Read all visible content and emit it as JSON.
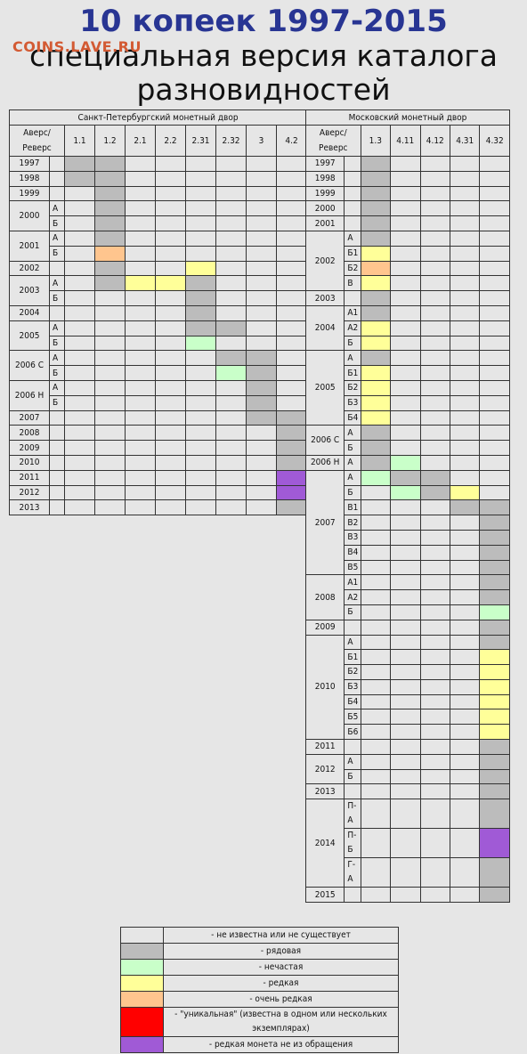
{
  "title": "10 копеек 1997-2015",
  "subtitle": "специальная версия каталога разновидностей",
  "watermark": "COINS.LAVE.RU",
  "colors": {
    "0": "#e6e6e6",
    "1": "#bcbcbc",
    "2": "#c9ffc9",
    "3": "#ffff99",
    "4": "#ffc58e",
    "5": "#ff0000",
    "6": "#a05ad6"
  },
  "spb": {
    "mint": "Санкт-Петербургский монетный двор",
    "obverse_reverse": "Аверс/ Реверс",
    "columns": [
      "1.1",
      "1.2",
      "2.1",
      "2.2",
      "2.31",
      "2.32",
      "3",
      "4.2"
    ],
    "rows": [
      {
        "year": "1997",
        "sub": "",
        "cells": [
          1,
          1,
          0,
          0,
          0,
          0,
          0,
          0
        ]
      },
      {
        "year": "1998",
        "sub": "",
        "cells": [
          1,
          1,
          0,
          0,
          0,
          0,
          0,
          0
        ]
      },
      {
        "year": "1999",
        "sub": "",
        "cells": [
          0,
          1,
          0,
          0,
          0,
          0,
          0,
          0
        ]
      },
      {
        "year": "2000",
        "sub": "А",
        "cells": [
          0,
          1,
          0,
          0,
          0,
          0,
          0,
          0
        ]
      },
      {
        "year": "",
        "sub": "Б",
        "cells": [
          0,
          1,
          0,
          0,
          0,
          0,
          0,
          0
        ]
      },
      {
        "year": "2001",
        "sub": "А",
        "cells": [
          0,
          1,
          0,
          0,
          0,
          0,
          0,
          0
        ]
      },
      {
        "year": "",
        "sub": "Б",
        "cells": [
          0,
          4,
          0,
          0,
          0,
          0,
          0,
          0
        ]
      },
      {
        "year": "2002",
        "sub": "",
        "cells": [
          0,
          1,
          0,
          0,
          3,
          0,
          0,
          0
        ]
      },
      {
        "year": "2003",
        "sub": "А",
        "cells": [
          0,
          1,
          3,
          3,
          1,
          0,
          0,
          0
        ]
      },
      {
        "year": "",
        "sub": "Б",
        "cells": [
          0,
          0,
          0,
          0,
          1,
          0,
          0,
          0
        ]
      },
      {
        "year": "2004",
        "sub": "",
        "cells": [
          0,
          0,
          0,
          0,
          1,
          0,
          0,
          0
        ]
      },
      {
        "year": "2005",
        "sub": "А",
        "cells": [
          0,
          0,
          0,
          0,
          1,
          1,
          0,
          0
        ]
      },
      {
        "year": "",
        "sub": "Б",
        "cells": [
          0,
          0,
          0,
          0,
          2,
          0,
          0,
          0
        ]
      },
      {
        "year": "2006 С",
        "sub": "А",
        "cells": [
          0,
          0,
          0,
          0,
          0,
          1,
          1,
          0
        ]
      },
      {
        "year": "",
        "sub": "Б",
        "cells": [
          0,
          0,
          0,
          0,
          0,
          2,
          1,
          0
        ]
      },
      {
        "year": "2006 Н",
        "sub": "А",
        "cells": [
          0,
          0,
          0,
          0,
          0,
          0,
          1,
          0
        ]
      },
      {
        "year": "",
        "sub": "Б",
        "cells": [
          0,
          0,
          0,
          0,
          0,
          0,
          1,
          0
        ]
      },
      {
        "year": "2007",
        "sub": "",
        "cells": [
          0,
          0,
          0,
          0,
          0,
          0,
          1,
          1
        ]
      },
      {
        "year": "2008",
        "sub": "",
        "cells": [
          0,
          0,
          0,
          0,
          0,
          0,
          0,
          1
        ]
      },
      {
        "year": "2009",
        "sub": "",
        "cells": [
          0,
          0,
          0,
          0,
          0,
          0,
          0,
          1
        ]
      },
      {
        "year": "2010",
        "sub": "",
        "cells": [
          0,
          0,
          0,
          0,
          0,
          0,
          0,
          1
        ]
      },
      {
        "year": "2011",
        "sub": "",
        "cells": [
          0,
          0,
          0,
          0,
          0,
          0,
          0,
          6
        ]
      },
      {
        "year": "2012",
        "sub": "",
        "cells": [
          0,
          0,
          0,
          0,
          0,
          0,
          0,
          6
        ]
      },
      {
        "year": "2013",
        "sub": "",
        "cells": [
          0,
          0,
          0,
          0,
          0,
          0,
          0,
          1
        ]
      }
    ]
  },
  "msk": {
    "mint": "Московский монетный двор",
    "obverse_reverse": "Аверс/ Реверс",
    "columns": [
      "1.3",
      "4.11",
      "4.12",
      "4.31",
      "4.32"
    ],
    "rows": [
      {
        "year": "1997",
        "sub": "",
        "cells": [
          1,
          0,
          0,
          0,
          0
        ]
      },
      {
        "year": "1998",
        "sub": "",
        "cells": [
          1,
          0,
          0,
          0,
          0
        ]
      },
      {
        "year": "1999",
        "sub": "",
        "cells": [
          1,
          0,
          0,
          0,
          0
        ]
      },
      {
        "year": "2000",
        "sub": "",
        "cells": [
          1,
          0,
          0,
          0,
          0
        ]
      },
      {
        "year": "2001",
        "sub": "",
        "cells": [
          1,
          0,
          0,
          0,
          0
        ]
      },
      {
        "year": "2002",
        "sub": "А",
        "cells": [
          1,
          0,
          0,
          0,
          0
        ]
      },
      {
        "year": "",
        "sub": "Б1",
        "cells": [
          3,
          0,
          0,
          0,
          0
        ]
      },
      {
        "year": "",
        "sub": "Б2",
        "cells": [
          4,
          0,
          0,
          0,
          0
        ]
      },
      {
        "year": "",
        "sub": "В",
        "cells": [
          3,
          0,
          0,
          0,
          0
        ]
      },
      {
        "year": "2003",
        "sub": "",
        "cells": [
          1,
          0,
          0,
          0,
          0
        ]
      },
      {
        "year": "2004",
        "sub": "А1",
        "cells": [
          1,
          0,
          0,
          0,
          0
        ]
      },
      {
        "year": "",
        "sub": "А2",
        "cells": [
          3,
          0,
          0,
          0,
          0
        ]
      },
      {
        "year": "",
        "sub": "Б",
        "cells": [
          3,
          0,
          0,
          0,
          0
        ]
      },
      {
        "year": "2005",
        "sub": "А",
        "cells": [
          1,
          0,
          0,
          0,
          0
        ]
      },
      {
        "year": "",
        "sub": "Б1",
        "cells": [
          3,
          0,
          0,
          0,
          0
        ]
      },
      {
        "year": "",
        "sub": "Б2",
        "cells": [
          3,
          0,
          0,
          0,
          0
        ]
      },
      {
        "year": "",
        "sub": "Б3",
        "cells": [
          3,
          0,
          0,
          0,
          0
        ]
      },
      {
        "year": "",
        "sub": "Б4",
        "cells": [
          3,
          0,
          0,
          0,
          0
        ]
      },
      {
        "year": "2006 С",
        "sub": "А",
        "cells": [
          1,
          0,
          0,
          0,
          0
        ]
      },
      {
        "year": "",
        "sub": "Б",
        "cells": [
          1,
          0,
          0,
          0,
          0
        ]
      },
      {
        "year": "2006 Н",
        "sub": "А",
        "cells": [
          1,
          2,
          0,
          0,
          0
        ]
      },
      {
        "year": "2007",
        "sub": "А",
        "cells": [
          2,
          1,
          1,
          0,
          0
        ]
      },
      {
        "year": "",
        "sub": "Б",
        "cells": [
          0,
          2,
          1,
          3,
          0
        ]
      },
      {
        "year": "",
        "sub": "В1",
        "cells": [
          0,
          0,
          0,
          1,
          1
        ]
      },
      {
        "year": "",
        "sub": "В2",
        "cells": [
          0,
          0,
          0,
          0,
          1
        ]
      },
      {
        "year": "",
        "sub": "В3",
        "cells": [
          0,
          0,
          0,
          0,
          1
        ]
      },
      {
        "year": "",
        "sub": "В4",
        "cells": [
          0,
          0,
          0,
          0,
          1
        ]
      },
      {
        "year": "",
        "sub": "В5",
        "cells": [
          0,
          0,
          0,
          0,
          1
        ]
      },
      {
        "year": "2008",
        "sub": "А1",
        "cells": [
          0,
          0,
          0,
          0,
          1
        ]
      },
      {
        "year": "",
        "sub": "А2",
        "cells": [
          0,
          0,
          0,
          0,
          1
        ]
      },
      {
        "year": "",
        "sub": "Б",
        "cells": [
          0,
          0,
          0,
          0,
          2
        ]
      },
      {
        "year": "2009",
        "sub": "",
        "cells": [
          0,
          0,
          0,
          0,
          1
        ]
      },
      {
        "year": "2010",
        "sub": "А",
        "cells": [
          0,
          0,
          0,
          0,
          1
        ]
      },
      {
        "year": "",
        "sub": "Б1",
        "cells": [
          0,
          0,
          0,
          0,
          3
        ]
      },
      {
        "year": "",
        "sub": "Б2",
        "cells": [
          0,
          0,
          0,
          0,
          3
        ]
      },
      {
        "year": "",
        "sub": "Б3",
        "cells": [
          0,
          0,
          0,
          0,
          3
        ]
      },
      {
        "year": "",
        "sub": "Б4",
        "cells": [
          0,
          0,
          0,
          0,
          3
        ]
      },
      {
        "year": "",
        "sub": "Б5",
        "cells": [
          0,
          0,
          0,
          0,
          3
        ]
      },
      {
        "year": "",
        "sub": "Б6",
        "cells": [
          0,
          0,
          0,
          0,
          3
        ]
      },
      {
        "year": "2011",
        "sub": "",
        "cells": [
          0,
          0,
          0,
          0,
          1
        ]
      },
      {
        "year": "2012",
        "sub": "А",
        "cells": [
          0,
          0,
          0,
          0,
          1
        ]
      },
      {
        "year": "",
        "sub": "Б",
        "cells": [
          0,
          0,
          0,
          0,
          1
        ]
      },
      {
        "year": "2013",
        "sub": "",
        "cells": [
          0,
          0,
          0,
          0,
          1
        ]
      },
      {
        "year": "2014",
        "sub": "П-А",
        "cells": [
          0,
          0,
          0,
          0,
          1
        ]
      },
      {
        "year": "",
        "sub": "П-Б",
        "cells": [
          0,
          0,
          0,
          0,
          6
        ]
      },
      {
        "year": "",
        "sub": "Г-А",
        "cells": [
          0,
          0,
          0,
          0,
          1
        ]
      },
      {
        "year": "2015",
        "sub": "",
        "cells": [
          0,
          0,
          0,
          0,
          1
        ]
      }
    ]
  },
  "legend": [
    {
      "color": 0,
      "text": "- не известна или не существует"
    },
    {
      "color": 1,
      "text": "- рядовая"
    },
    {
      "color": 2,
      "text": "- нечастая"
    },
    {
      "color": 3,
      "text": "- редкая"
    },
    {
      "color": 4,
      "text": "- очень редкая"
    },
    {
      "color": 5,
      "text": "- \"уникальная\" (известна в одном или нескольких экземплярах)"
    },
    {
      "color": 6,
      "text": "- редкая монета не из обращения"
    }
  ]
}
